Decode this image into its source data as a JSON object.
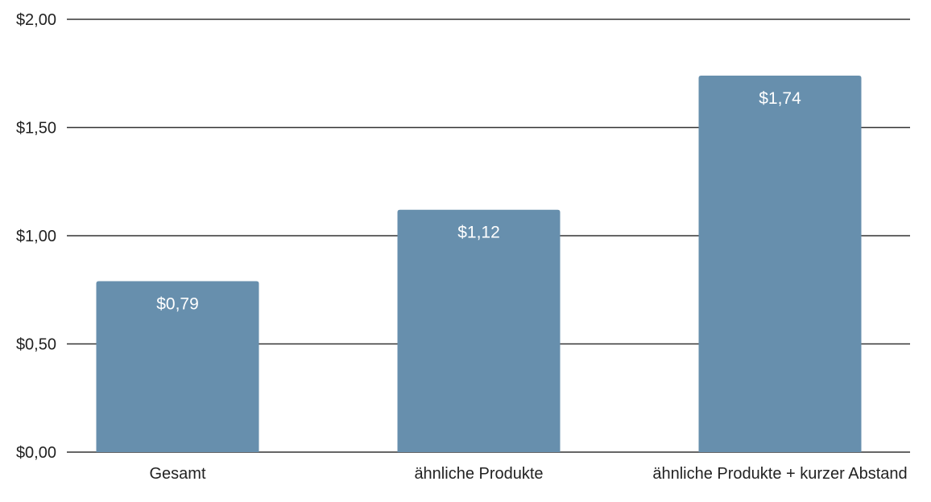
{
  "chart_data": {
    "type": "bar",
    "title": "",
    "xlabel": "",
    "ylabel": "",
    "categories": [
      "Gesamt",
      "ähnliche Produkte",
      "ähnliche Produkte + kurzer Abstand"
    ],
    "values": [
      0.79,
      1.12,
      1.74
    ],
    "value_labels": [
      "$0,79",
      "$1,12",
      "$1,74"
    ],
    "ylim": [
      0,
      2.0
    ],
    "yticks": [
      0,
      0.5,
      1.0,
      1.5,
      2.0
    ],
    "ytick_labels": [
      "$0,00",
      "$0,50",
      "$1,00",
      "$1,50",
      "$2,00"
    ],
    "grid": true,
    "legend": "none",
    "bar_color": "#678fad",
    "label_color": "#ffffff"
  }
}
